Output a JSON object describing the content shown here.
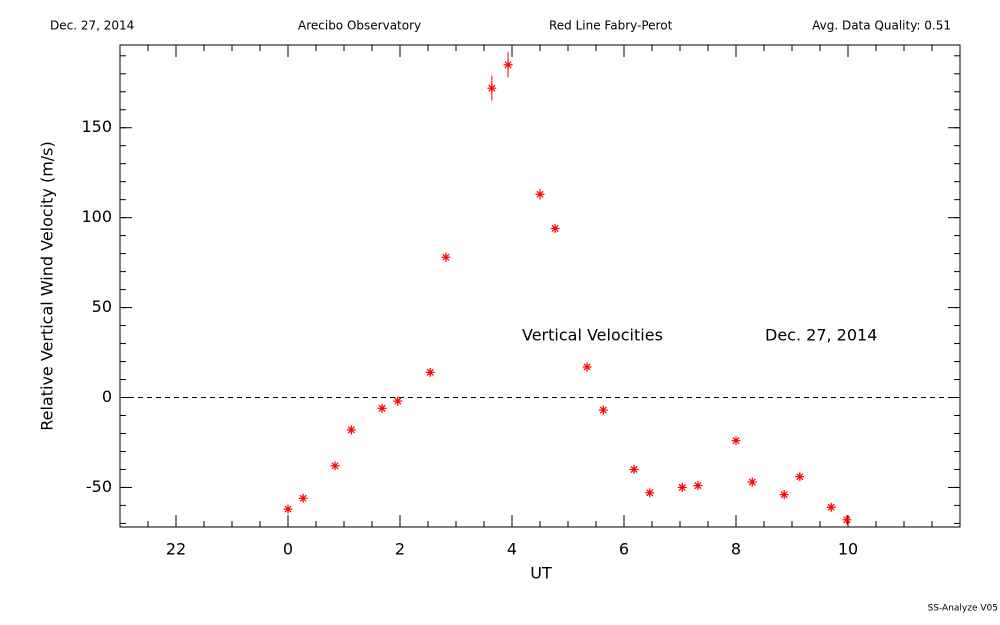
{
  "chart_data": {
    "type": "scatter",
    "header": [
      "Dec. 27, 2014",
      "Arecibo Observatory",
      "Red Line Fabry-Perot",
      "Avg. Data Quality: 0.51"
    ],
    "ylabel": "Relative Vertical Wind Velocity (m/s)",
    "xlabel": "UT",
    "annotations": [
      "Vertical Velocities",
      "Dec. 27, 2014"
    ],
    "footer": "SS-Analyze V05",
    "xlim": [
      -3,
      12
    ],
    "ylim": [
      -72,
      196
    ],
    "xticks": [
      {
        "value": -2,
        "label": "22"
      },
      0,
      2,
      4,
      6,
      8,
      10
    ],
    "yticks": [
      -50,
      0,
      50,
      100,
      150
    ],
    "xminor": 0.5,
    "yminor": 10,
    "reference_line": 0,
    "series": [
      {
        "color": "#ff0000",
        "x": [
          0,
          0.27,
          0.84,
          1.13,
          1.68,
          1.96,
          2.54,
          2.82,
          3.64,
          3.93,
          4.5,
          4.77,
          5.34,
          5.63,
          6.18,
          6.46,
          7.04,
          7.32,
          8.0,
          8.29,
          8.86,
          9.14,
          9.7,
          9.98
        ],
        "values": [
          -62,
          -56,
          -38,
          -18,
          -6,
          -2,
          14,
          78,
          172,
          185,
          113,
          94,
          17,
          -7,
          -40,
          -53,
          -50,
          -49,
          -24,
          -47,
          -54,
          -44,
          -61,
          -68
        ],
        "errors": [
          2,
          2,
          2,
          2,
          2,
          2,
          2,
          2,
          7,
          7,
          3,
          2,
          2,
          2,
          2,
          2,
          2,
          2,
          2,
          2,
          2,
          2,
          2,
          2
        ]
      }
    ]
  }
}
